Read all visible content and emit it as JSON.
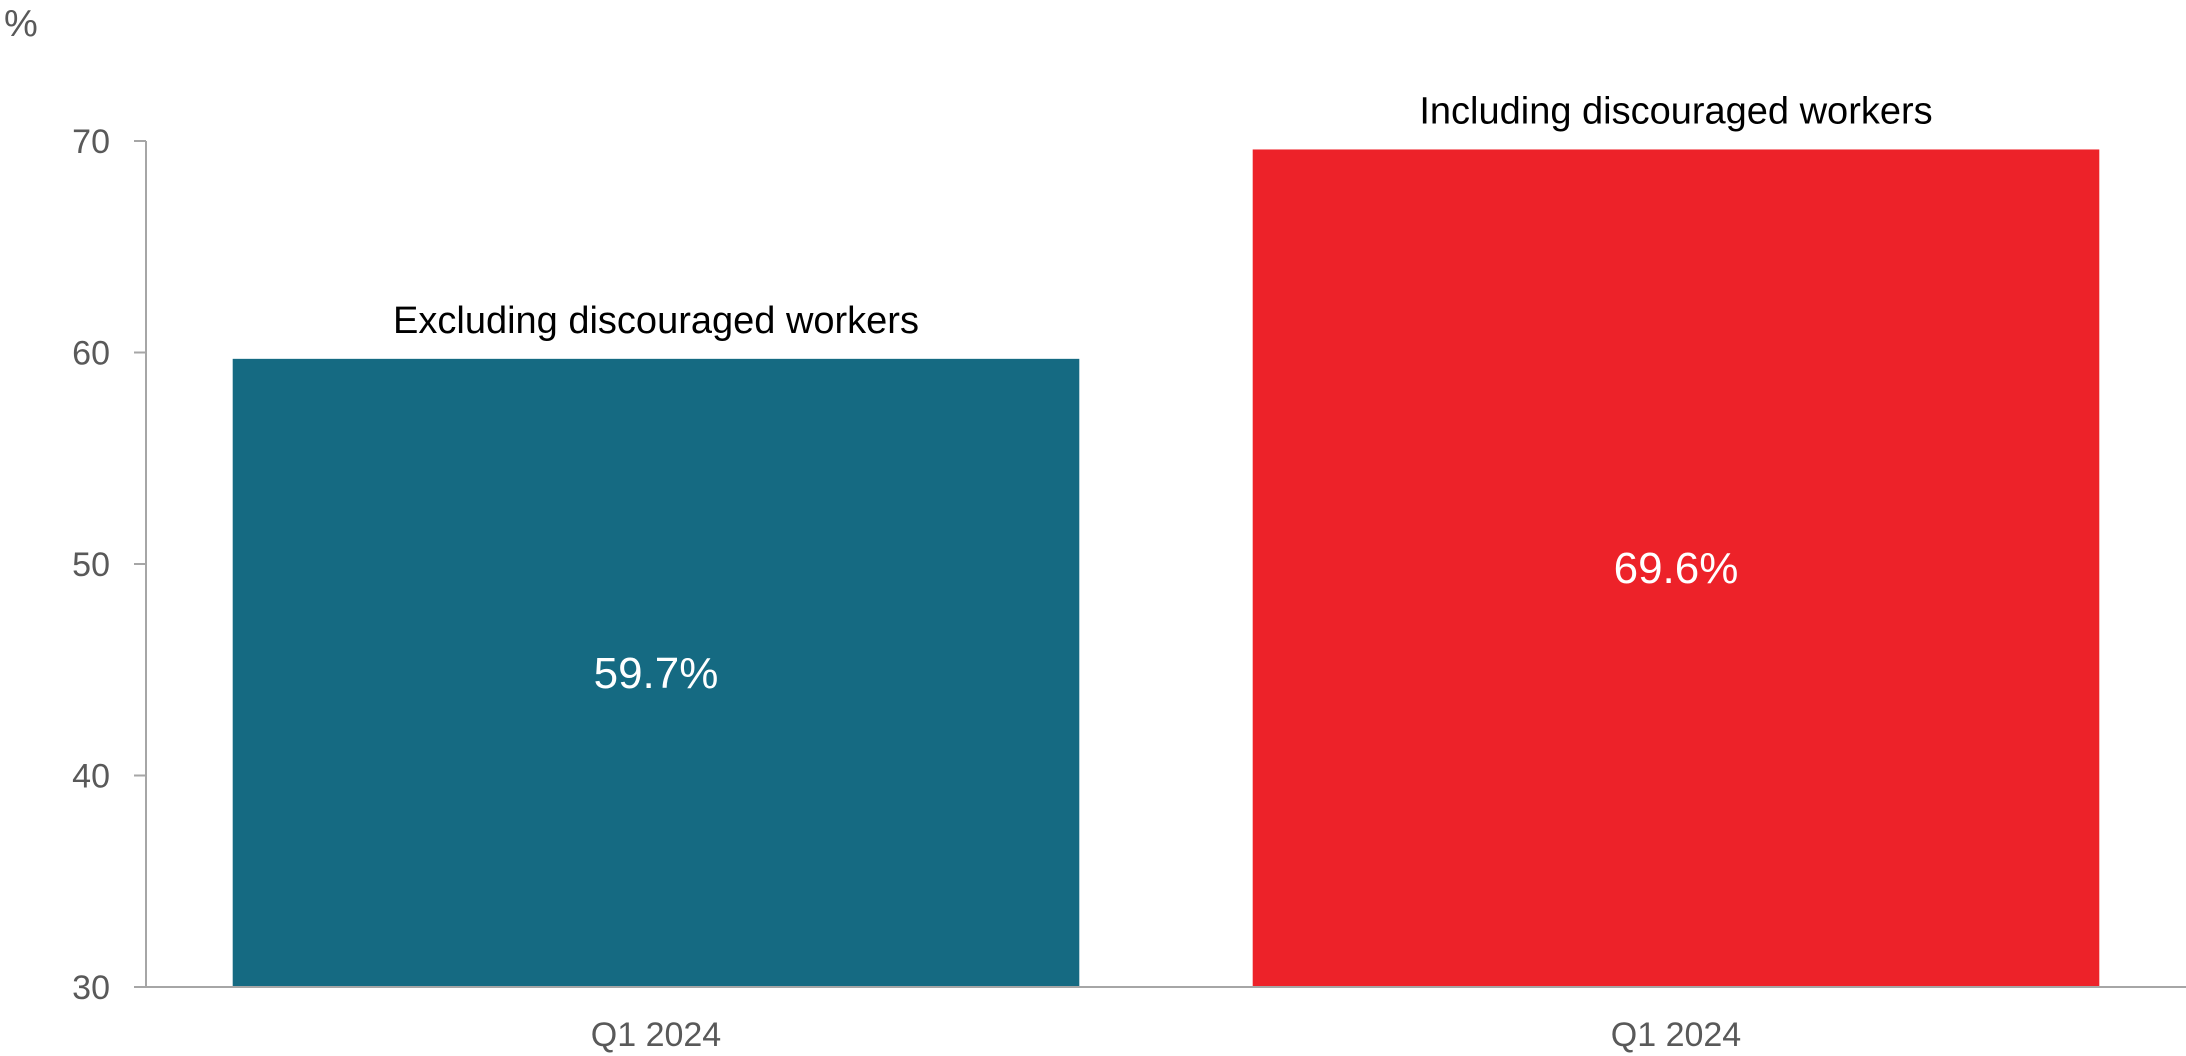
{
  "chart_data": {
    "type": "bar",
    "unit_label": "%",
    "categories": [
      "Q1 2024",
      "Q1 2024"
    ],
    "series": [
      {
        "name": "Excluding discouraged workers",
        "values": [
          59.7,
          null
        ],
        "value_label": "59.7%",
        "color": "#156a82"
      },
      {
        "name": "Including discouraged workers",
        "values": [
          null,
          69.6
        ],
        "value_label": "69.6%",
        "color": "#ed2229"
      }
    ],
    "yticks": [
      "30",
      "40",
      "50",
      "60",
      "70"
    ],
    "ylim": [
      30,
      70
    ],
    "xlabel": "",
    "ylabel": "",
    "grid": false,
    "legend": "none (series names labelled above bars)"
  },
  "colors": {
    "axis": "#a6a6a6",
    "text": "#595959"
  }
}
